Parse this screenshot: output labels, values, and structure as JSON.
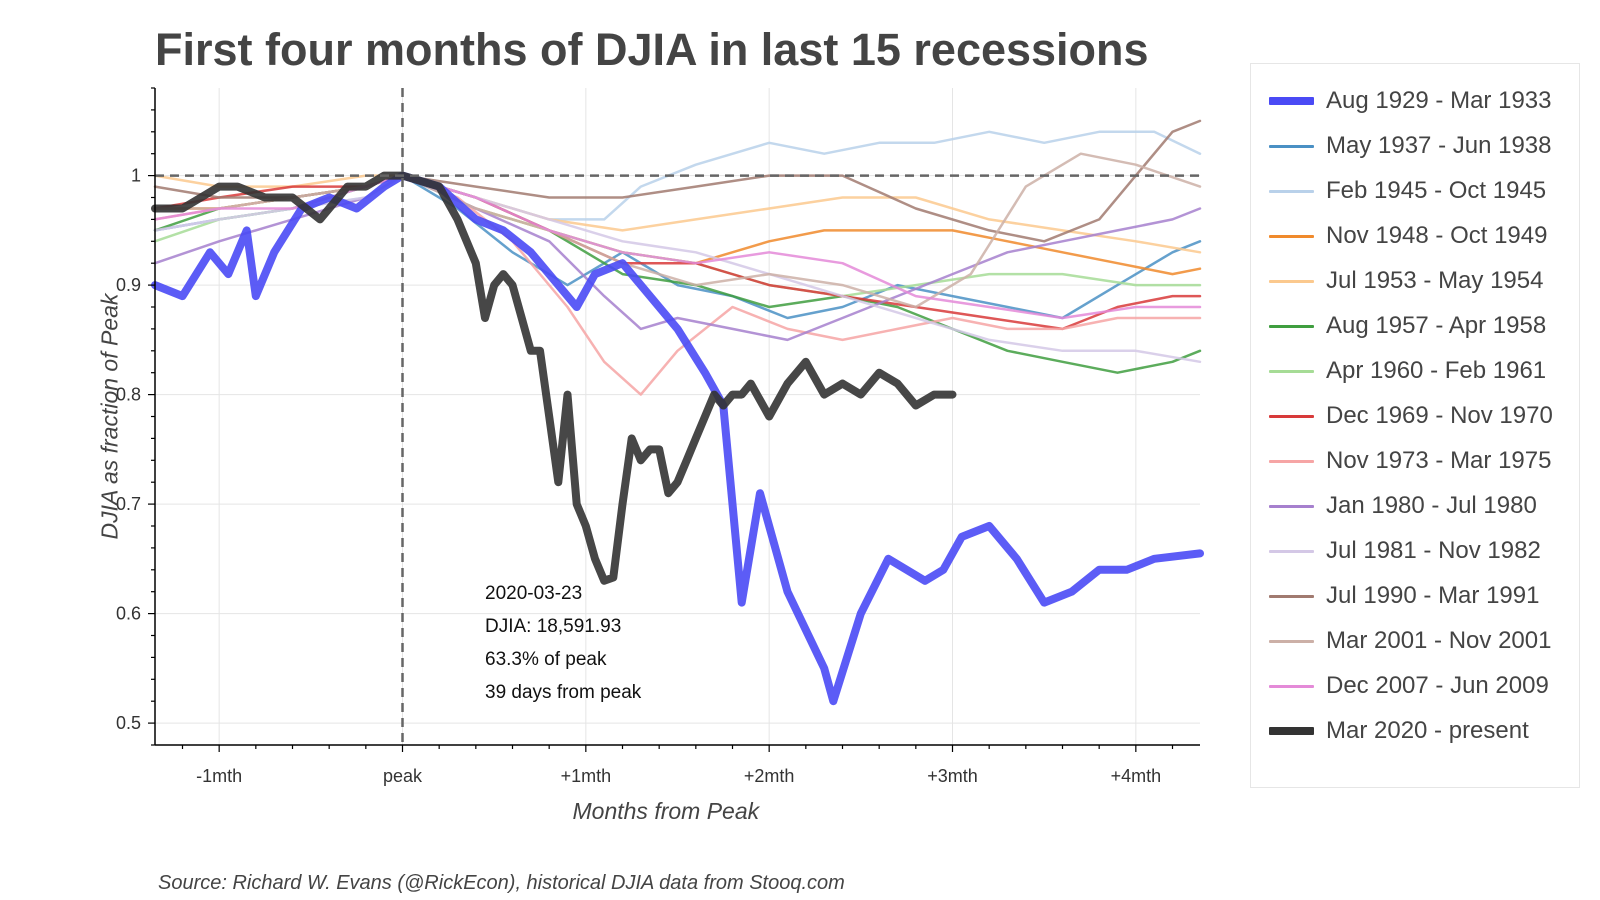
{
  "title": "First four months of DJIA in last 15 recessions",
  "source": "Source: Richard W. Evans (@RickEcon), historical DJIA data from Stooq.com",
  "annotation": {
    "date": "2020-03-23",
    "djia": "DJIA: 18,591.93",
    "pct": "63.3% of peak",
    "days": "39 days from peak"
  },
  "chart_data": {
    "type": "line",
    "title": "First four months of DJIA in last 15 recessions",
    "xlabel": "Months from Peak",
    "ylabel": "DJIA as fraction of Peak",
    "xlim": [
      -1.35,
      4.35
    ],
    "ylim": [
      0.48,
      1.08
    ],
    "x_ticks": [
      {
        "value": -1,
        "label": "-1mth"
      },
      {
        "value": 0,
        "label": "peak"
      },
      {
        "value": 1,
        "label": "+1mth"
      },
      {
        "value": 2,
        "label": "+2mth"
      },
      {
        "value": 3,
        "label": "+3mth"
      },
      {
        "value": 4,
        "label": "+4mth"
      }
    ],
    "y_ticks": [
      0.5,
      0.6,
      0.7,
      0.8,
      0.9,
      1
    ],
    "reference_lines": {
      "horizontal": 1,
      "vertical": 0
    },
    "grid": true,
    "legend_position": "right",
    "series": [
      {
        "name": "Aug 1929 - Mar 1933",
        "color": "#4a4af5",
        "emphasis": true,
        "x": [
          -1.35,
          -1.2,
          -1.05,
          -0.95,
          -0.85,
          -0.8,
          -0.7,
          -0.55,
          -0.4,
          -0.25,
          -0.1,
          0,
          0.2,
          0.4,
          0.55,
          0.7,
          0.85,
          0.95,
          1.05,
          1.2,
          1.35,
          1.5,
          1.65,
          1.75,
          1.85,
          1.95,
          2.1,
          2.3,
          2.35,
          2.5,
          2.65,
          2.85,
          2.95,
          3.05,
          3.2,
          3.35,
          3.5,
          3.65,
          3.8,
          3.95,
          4.1,
          4.35
        ],
        "y": [
          0.9,
          0.89,
          0.93,
          0.91,
          0.95,
          0.89,
          0.93,
          0.97,
          0.98,
          0.97,
          0.99,
          1,
          0.99,
          0.96,
          0.95,
          0.93,
          0.9,
          0.88,
          0.91,
          0.92,
          0.89,
          0.86,
          0.82,
          0.79,
          0.61,
          0.71,
          0.62,
          0.55,
          0.52,
          0.6,
          0.65,
          0.63,
          0.64,
          0.67,
          0.68,
          0.65,
          0.61,
          0.62,
          0.64,
          0.64,
          0.65,
          0.655
        ]
      },
      {
        "name": "May 1937 - Jun 1938",
        "color": "#4a90c4",
        "x": [
          -1.35,
          -1,
          -0.6,
          -0.2,
          0,
          0.3,
          0.6,
          0.9,
          1.2,
          1.5,
          1.8,
          2.1,
          2.4,
          2.7,
          3,
          3.3,
          3.6,
          3.9,
          4.2,
          4.35
        ],
        "y": [
          0.95,
          0.96,
          0.97,
          0.99,
          1,
          0.97,
          0.93,
          0.9,
          0.93,
          0.9,
          0.89,
          0.87,
          0.88,
          0.9,
          0.89,
          0.88,
          0.87,
          0.9,
          0.93,
          0.94
        ]
      },
      {
        "name": "Feb 1945 - Oct 1945",
        "color": "#b9d1ea",
        "x": [
          -1.35,
          -1,
          -0.6,
          -0.2,
          0,
          0.4,
          0.8,
          1.1,
          1.3,
          1.6,
          2,
          2.3,
          2.6,
          2.9,
          3.2,
          3.5,
          3.8,
          4.1,
          4.35
        ],
        "y": [
          0.95,
          0.96,
          0.97,
          0.98,
          1,
          0.98,
          0.96,
          0.96,
          0.99,
          1.01,
          1.03,
          1.02,
          1.03,
          1.03,
          1.04,
          1.03,
          1.04,
          1.04,
          1.02
        ]
      },
      {
        "name": "Nov 1948 - Oct 1949",
        "color": "#f08a2c",
        "x": [
          -1.35,
          -1,
          -0.6,
          -0.2,
          0,
          0.4,
          0.8,
          1.2,
          1.6,
          2,
          2.3,
          2.6,
          3,
          3.3,
          3.6,
          3.9,
          4.2,
          4.35
        ],
        "y": [
          0.97,
          0.97,
          0.98,
          0.99,
          1,
          0.97,
          0.95,
          0.93,
          0.92,
          0.94,
          0.95,
          0.95,
          0.95,
          0.94,
          0.93,
          0.92,
          0.91,
          0.915
        ]
      },
      {
        "name": "Jul 1953 - May 1954",
        "color": "#fbc98e",
        "x": [
          -1.35,
          -1,
          -0.6,
          -0.2,
          0,
          0.4,
          0.8,
          1.2,
          1.6,
          2,
          2.4,
          2.8,
          3.2,
          3.6,
          4,
          4.35
        ],
        "y": [
          1,
          0.99,
          0.99,
          1,
          1,
          0.98,
          0.96,
          0.95,
          0.96,
          0.97,
          0.98,
          0.98,
          0.96,
          0.95,
          0.94,
          0.93
        ]
      },
      {
        "name": "Aug 1957 - Apr 1958",
        "color": "#3f9e3f",
        "x": [
          -1.35,
          -1,
          -0.6,
          -0.2,
          0,
          0.4,
          0.8,
          1.2,
          1.6,
          2,
          2.4,
          2.7,
          3,
          3.3,
          3.6,
          3.9,
          4.2,
          4.35
        ],
        "y": [
          0.95,
          0.97,
          0.98,
          0.99,
          1,
          0.98,
          0.95,
          0.91,
          0.9,
          0.88,
          0.89,
          0.88,
          0.86,
          0.84,
          0.83,
          0.82,
          0.83,
          0.84
        ]
      },
      {
        "name": "Apr 1960 - Feb 1961",
        "color": "#a6dc96",
        "x": [
          -1.35,
          -1,
          -0.6,
          -0.2,
          0,
          0.4,
          0.8,
          1.2,
          1.6,
          2,
          2.4,
          2.8,
          3.2,
          3.6,
          4,
          4.35
        ],
        "y": [
          0.94,
          0.96,
          0.97,
          0.99,
          1,
          0.97,
          0.95,
          0.93,
          0.92,
          0.9,
          0.89,
          0.9,
          0.91,
          0.91,
          0.9,
          0.9
        ]
      },
      {
        "name": "Dec 1969 - Nov 1970",
        "color": "#d83a3a",
        "x": [
          -1.35,
          -1,
          -0.6,
          -0.2,
          0,
          0.4,
          0.8,
          1.2,
          1.6,
          2,
          2.4,
          2.8,
          3.2,
          3.6,
          3.9,
          4.2,
          4.35
        ],
        "y": [
          0.97,
          0.98,
          0.99,
          0.99,
          1,
          0.98,
          0.95,
          0.92,
          0.92,
          0.9,
          0.89,
          0.88,
          0.87,
          0.86,
          0.88,
          0.89,
          0.89
        ]
      },
      {
        "name": "Nov 1973 - Mar 1975",
        "color": "#f6a5a5",
        "x": [
          -1.35,
          -1,
          -0.6,
          -0.2,
          0,
          0.3,
          0.6,
          0.9,
          1.1,
          1.3,
          1.5,
          1.8,
          2.1,
          2.4,
          2.7,
          3,
          3.3,
          3.6,
          3.9,
          4.2,
          4.35
        ],
        "y": [
          0.96,
          0.97,
          0.98,
          0.99,
          1,
          0.98,
          0.94,
          0.88,
          0.83,
          0.8,
          0.84,
          0.88,
          0.86,
          0.85,
          0.86,
          0.87,
          0.86,
          0.86,
          0.87,
          0.87,
          0.87
        ]
      },
      {
        "name": "Jan 1980 - Jul 1980",
        "color": "#a680ce",
        "x": [
          -1.35,
          -1,
          -0.6,
          -0.2,
          0,
          0.4,
          0.8,
          1.1,
          1.3,
          1.5,
          1.8,
          2.1,
          2.4,
          2.7,
          3,
          3.3,
          3.6,
          3.9,
          4.2,
          4.35
        ],
        "y": [
          0.92,
          0.94,
          0.96,
          0.98,
          1,
          0.97,
          0.94,
          0.89,
          0.86,
          0.87,
          0.86,
          0.85,
          0.87,
          0.89,
          0.91,
          0.93,
          0.94,
          0.95,
          0.96,
          0.97
        ]
      },
      {
        "name": "Jul 1981 - Nov 1982",
        "color": "#d4c8e6",
        "x": [
          -1.35,
          -1,
          -0.6,
          -0.2,
          0,
          0.4,
          0.8,
          1.2,
          1.6,
          2,
          2.4,
          2.8,
          3.2,
          3.6,
          4,
          4.35
        ],
        "y": [
          0.95,
          0.96,
          0.97,
          0.98,
          1,
          0.98,
          0.96,
          0.94,
          0.93,
          0.91,
          0.89,
          0.87,
          0.85,
          0.84,
          0.84,
          0.83
        ]
      },
      {
        "name": "Jul 1990 - Mar 1991",
        "color": "#a17a70",
        "x": [
          -1.35,
          -1,
          -0.6,
          -0.2,
          0,
          0.4,
          0.8,
          1.2,
          1.6,
          2,
          2.4,
          2.8,
          3.2,
          3.5,
          3.8,
          4,
          4.2,
          4.35
        ],
        "y": [
          0.99,
          0.98,
          0.98,
          0.99,
          1,
          0.99,
          0.98,
          0.98,
          0.99,
          1,
          1,
          0.97,
          0.95,
          0.94,
          0.96,
          1,
          1.04,
          1.05
        ]
      },
      {
        "name": "Mar 2001 - Nov 2001",
        "color": "#ccb0a7",
        "x": [
          -1.35,
          -1,
          -0.6,
          -0.2,
          0,
          0.4,
          0.8,
          1.2,
          1.6,
          2,
          2.4,
          2.8,
          3.1,
          3.4,
          3.7,
          4,
          4.35
        ],
        "y": [
          0.97,
          0.97,
          0.98,
          0.99,
          1,
          0.97,
          0.95,
          0.92,
          0.9,
          0.91,
          0.9,
          0.88,
          0.91,
          0.99,
          1.02,
          1.01,
          0.99
        ]
      },
      {
        "name": "Dec 2007 - Jun 2009",
        "color": "#e48ad8",
        "x": [
          -1.35,
          -1,
          -0.6,
          -0.2,
          0,
          0.4,
          0.8,
          1.2,
          1.6,
          2,
          2.4,
          2.8,
          3.2,
          3.6,
          4,
          4.35
        ],
        "y": [
          0.96,
          0.97,
          0.97,
          0.99,
          1,
          0.98,
          0.95,
          0.93,
          0.92,
          0.93,
          0.92,
          0.89,
          0.88,
          0.87,
          0.88,
          0.88
        ]
      },
      {
        "name": "Mar 2020 - present",
        "color": "#333333",
        "emphasis": true,
        "x": [
          -1.35,
          -1.2,
          -1,
          -0.9,
          -0.75,
          -0.6,
          -0.45,
          -0.3,
          -0.2,
          -0.1,
          0,
          0.2,
          0.3,
          0.4,
          0.45,
          0.5,
          0.55,
          0.6,
          0.65,
          0.7,
          0.75,
          0.8,
          0.85,
          0.9,
          0.95,
          1,
          1.05,
          1.1,
          1.15,
          1.2,
          1.25,
          1.3,
          1.35,
          1.4,
          1.45,
          1.5,
          1.55,
          1.6,
          1.65,
          1.7,
          1.75,
          1.8,
          1.85,
          1.9,
          2,
          2.1,
          2.2,
          2.3,
          2.4,
          2.5,
          2.6,
          2.7,
          2.8,
          2.9,
          3
        ],
        "y": [
          0.97,
          0.97,
          0.99,
          0.99,
          0.98,
          0.98,
          0.96,
          0.99,
          0.99,
          1,
          1,
          0.99,
          0.96,
          0.92,
          0.87,
          0.9,
          0.91,
          0.9,
          0.87,
          0.84,
          0.84,
          0.78,
          0.72,
          0.8,
          0.7,
          0.68,
          0.65,
          0.63,
          0.633,
          0.7,
          0.76,
          0.74,
          0.75,
          0.75,
          0.71,
          0.72,
          0.74,
          0.76,
          0.78,
          0.8,
          0.79,
          0.8,
          0.8,
          0.81,
          0.78,
          0.81,
          0.83,
          0.8,
          0.81,
          0.8,
          0.82,
          0.81,
          0.79,
          0.8,
          0.8
        ]
      }
    ]
  }
}
